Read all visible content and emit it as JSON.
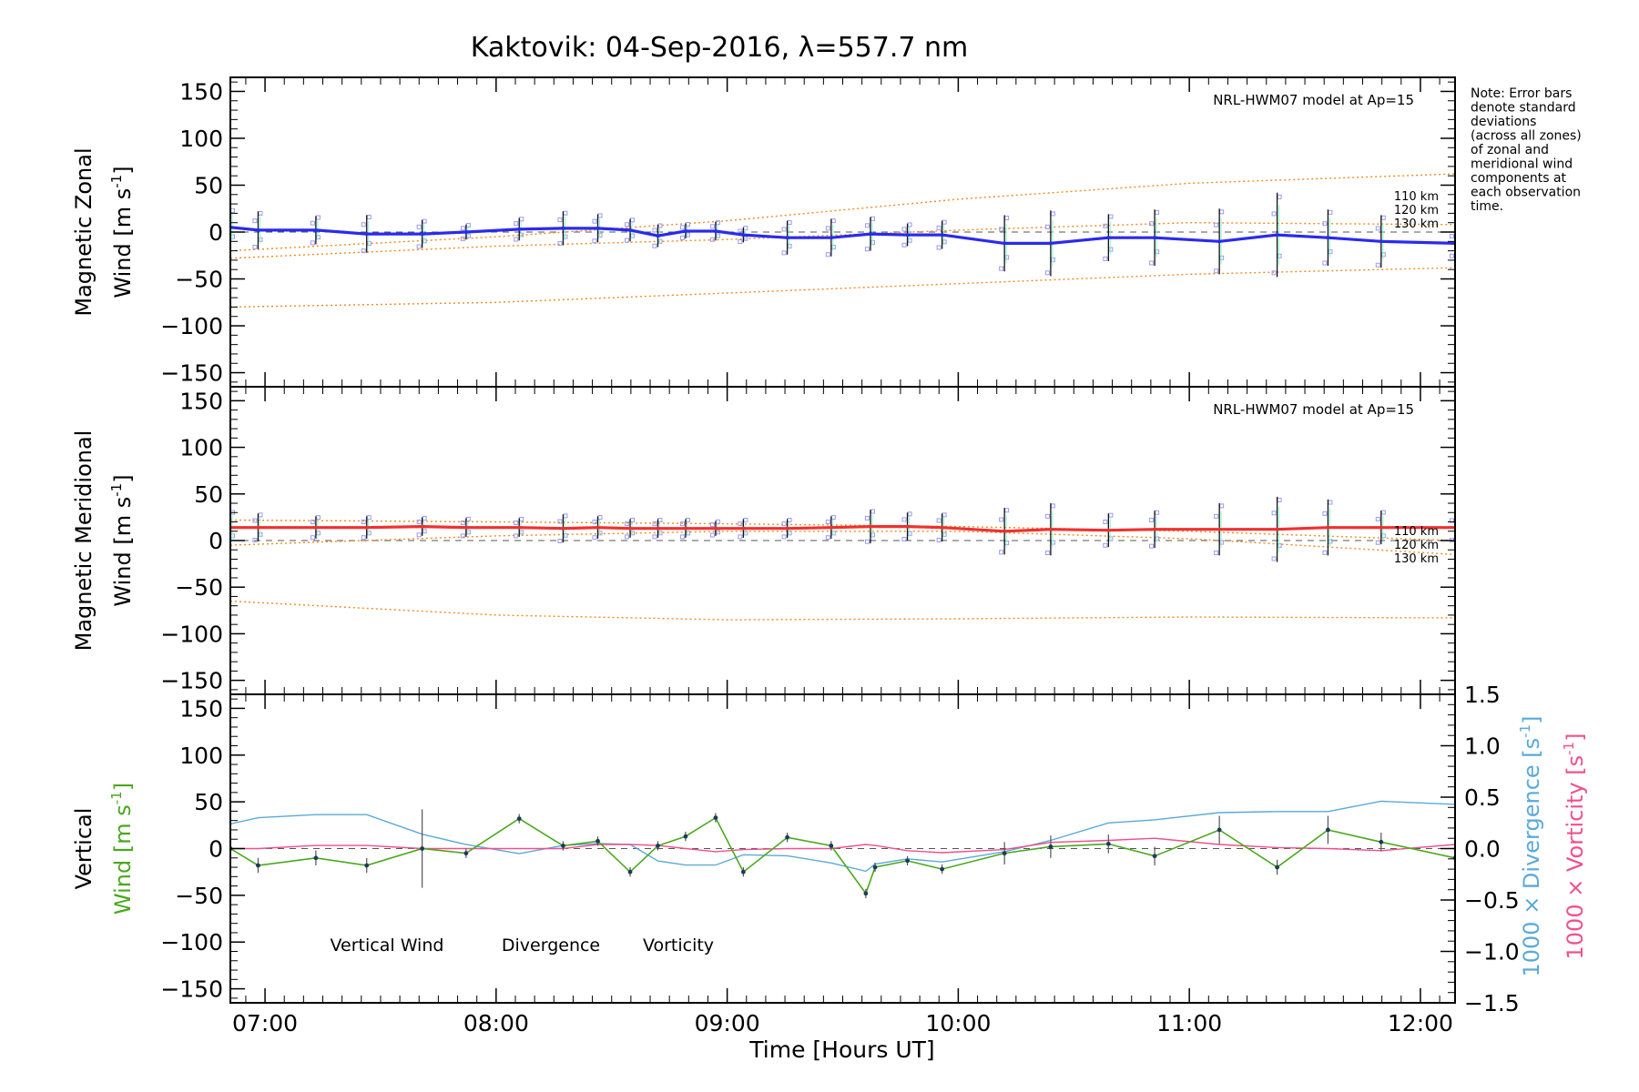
{
  "chart_data": {
    "type": "line",
    "title": "Kaktovik: 04-Sep-2016, λ=557.7 nm",
    "xlabel": "Time [Hours UT]",
    "x_ticks": [
      "07:00",
      "08:00",
      "09:00",
      "10:00",
      "11:00",
      "12:00"
    ],
    "xlim_hours": [
      6.85,
      12.15
    ],
    "note": [
      "Note: Error bars",
      "denote standard",
      "deviations",
      "(across all zones)",
      "of zonal and",
      "meridional wind",
      "components at",
      "each observation",
      "time."
    ],
    "colors": {
      "zonal": "#2a2af0",
      "meridional": "#f03030",
      "vertical": "#4aa81e",
      "divergence": "#5aaad8",
      "vorticity": "#f0508c",
      "model": "#f08a1e",
      "zone_markers": "#9a9af0"
    },
    "panels": [
      {
        "name": "zonal",
        "ylabel_line1": "Magnetic Zonal",
        "ylabel_line2": "Wind [m s⁻¹]",
        "ylim": [
          -165,
          165
        ],
        "y_ticks": [
          150,
          100,
          50,
          0,
          -50,
          -100,
          -150
        ],
        "model_label": "NRL-HWM07 model at Ap=15",
        "altitude_labels": [
          "110 km",
          "120 km",
          "130 km"
        ],
        "model_curves": [
          {
            "altitude": "110 km",
            "x": [
              6.85,
              8.0,
              9.0,
              10.0,
              11.0,
              12.15
            ],
            "y": [
              -20,
              -5,
              12,
              35,
              52,
              62
            ]
          },
          {
            "altitude": "120 km",
            "x": [
              6.85,
              8.0,
              9.0,
              10.0,
              11.0,
              12.15
            ],
            "y": [
              -28,
              -15,
              -8,
              2,
              10,
              8
            ]
          },
          {
            "altitude": "130 km",
            "x": [
              6.85,
              8.0,
              9.0,
              10.0,
              11.0,
              12.15
            ],
            "y": [
              -80,
              -75,
              -65,
              -55,
              -45,
              -38
            ]
          }
        ],
        "series": {
          "name": "Zonal wind",
          "x": [
            6.85,
            6.97,
            7.22,
            7.44,
            7.68,
            7.87,
            8.1,
            8.29,
            8.44,
            8.58,
            8.7,
            8.82,
            8.95,
            9.07,
            9.26,
            9.45,
            9.62,
            9.78,
            9.93,
            10.2,
            10.4,
            10.65,
            10.85,
            11.13,
            11.38,
            11.6,
            11.83,
            12.15
          ],
          "y": [
            5,
            2,
            2,
            -2,
            -2,
            0,
            3,
            4,
            4,
            2,
            -4,
            1,
            1,
            -3,
            -6,
            -6,
            -2,
            -3,
            -3,
            -12,
            -12,
            -6,
            -6,
            -10,
            -3,
            -6,
            -10,
            -12
          ],
          "err": [
            20,
            20,
            15,
            20,
            15,
            8,
            12,
            18,
            15,
            12,
            12,
            8,
            10,
            8,
            18,
            20,
            18,
            12,
            15,
            30,
            35,
            25,
            30,
            35,
            45,
            30,
            28,
            15
          ]
        }
      },
      {
        "name": "meridional",
        "ylabel_line1": "Magnetic Meridional",
        "ylabel_line2": "Wind [m s⁻¹]",
        "ylim": [
          -165,
          165
        ],
        "y_ticks": [
          150,
          100,
          50,
          0,
          -50,
          -100,
          -150
        ],
        "model_label": "NRL-HWM07 model at Ap=15",
        "altitude_labels": [
          "110 km",
          "120 km",
          "130 km"
        ],
        "model_curves": [
          {
            "altitude": "110 km",
            "x": [
              6.85,
              8.0,
              9.0,
              10.0,
              11.0,
              12.15
            ],
            "y": [
              22,
              20,
              18,
              15,
              10,
              0
            ]
          },
          {
            "altitude": "120 km",
            "x": [
              6.85,
              8.0,
              9.0,
              10.0,
              11.0,
              12.15
            ],
            "y": [
              -5,
              5,
              10,
              10,
              2,
              -15
            ]
          },
          {
            "altitude": "130 km",
            "x": [
              6.85,
              8.0,
              9.0,
              10.0,
              11.0,
              12.15
            ],
            "y": [
              -65,
              -80,
              -85,
              -84,
              -82,
              -83
            ]
          }
        ],
        "series": {
          "name": "Meridional wind",
          "x": [
            6.85,
            6.97,
            7.22,
            7.44,
            7.68,
            7.87,
            8.1,
            8.29,
            8.44,
            8.58,
            8.7,
            8.82,
            8.95,
            9.07,
            9.26,
            9.45,
            9.62,
            9.78,
            9.93,
            10.2,
            10.4,
            10.65,
            10.85,
            11.13,
            11.38,
            11.6,
            11.83,
            12.15
          ],
          "y": [
            14,
            14,
            14,
            14,
            15,
            14,
            14,
            13,
            14,
            13,
            13,
            13,
            13,
            13,
            13,
            14,
            15,
            15,
            14,
            10,
            12,
            11,
            12,
            12,
            12,
            14,
            14,
            14
          ],
          "err": [
            18,
            15,
            12,
            12,
            10,
            10,
            10,
            15,
            12,
            10,
            10,
            10,
            8,
            10,
            10,
            12,
            18,
            15,
            15,
            25,
            28,
            18,
            20,
            28,
            35,
            30,
            18,
            15
          ]
        }
      },
      {
        "name": "vertical",
        "ylabel_line1": "Vertical",
        "ylabel_line2": "Wind [m s⁻¹]",
        "ylim": [
          -165,
          165
        ],
        "y_ticks": [
          150,
          100,
          50,
          0,
          -50,
          -100,
          -150
        ],
        "right_ylim": [
          -1.5,
          1.5
        ],
        "right_ticks": [
          1.5,
          1.0,
          0.5,
          0.0,
          -0.5,
          -1.0,
          -1.5
        ],
        "right_label_divergence": "1000 × Divergence [s⁻¹]",
        "right_label_vorticity": "1000 × Vorticity [s⁻¹]",
        "legend": [
          "Vertical Wind",
          "Divergence",
          "Vorticity"
        ],
        "vertical_wind": {
          "x": [
            6.85,
            6.97,
            7.22,
            7.44,
            7.68,
            7.87,
            8.1,
            8.29,
            8.44,
            8.58,
            8.7,
            8.82,
            8.95,
            9.07,
            9.26,
            9.45,
            9.6,
            9.64,
            9.78,
            9.93,
            10.2,
            10.4,
            10.65,
            10.85,
            11.13,
            11.38,
            11.6,
            11.83,
            12.15
          ],
          "y": [
            0,
            -18,
            -10,
            -18,
            0,
            -5,
            32,
            3,
            8,
            -25,
            3,
            13,
            33,
            -25,
            12,
            3,
            -48,
            -20,
            -13,
            -22,
            -5,
            2,
            5,
            -8,
            20,
            -20,
            20,
            7,
            -10
          ],
          "err": [
            0,
            8,
            8,
            8,
            42,
            5,
            5,
            5,
            5,
            5,
            5,
            5,
            5,
            5,
            5,
            5,
            5,
            5,
            5,
            5,
            12,
            12,
            10,
            10,
            15,
            8,
            15,
            10,
            0
          ]
        },
        "divergence": {
          "x": [
            6.85,
            6.97,
            7.22,
            7.44,
            7.68,
            7.87,
            8.1,
            8.29,
            8.44,
            8.58,
            8.7,
            8.82,
            8.95,
            9.07,
            9.26,
            9.45,
            9.6,
            9.64,
            9.78,
            9.93,
            10.2,
            10.4,
            10.65,
            10.85,
            11.13,
            11.38,
            11.6,
            11.83,
            12.15
          ],
          "y": [
            0.24,
            0.3,
            0.33,
            0.33,
            0.14,
            0.04,
            -0.05,
            0.03,
            0.05,
            0.04,
            -0.12,
            -0.16,
            -0.16,
            -0.06,
            -0.07,
            -0.14,
            -0.22,
            -0.15,
            -0.1,
            -0.13,
            -0.03,
            0.08,
            0.25,
            0.28,
            0.35,
            0.36,
            0.36,
            0.46,
            0.43
          ]
        },
        "vorticity": {
          "x": [
            6.85,
            6.97,
            7.22,
            7.44,
            7.68,
            7.87,
            8.1,
            8.29,
            8.44,
            8.58,
            8.7,
            8.82,
            8.95,
            9.07,
            9.26,
            9.45,
            9.6,
            9.64,
            9.78,
            9.93,
            10.2,
            10.4,
            10.65,
            10.85,
            11.13,
            11.38,
            11.6,
            11.83,
            12.15
          ],
          "y": [
            0.0,
            0.0,
            0.03,
            0.03,
            0.0,
            0.0,
            0.0,
            0.0,
            0.04,
            0.04,
            0.03,
            0.0,
            -0.03,
            -0.01,
            0.0,
            0.0,
            0.04,
            0.03,
            -0.02,
            -0.04,
            -0.01,
            0.06,
            0.08,
            0.1,
            0.04,
            0.01,
            0.0,
            -0.02,
            0.04
          ]
        }
      }
    ]
  }
}
